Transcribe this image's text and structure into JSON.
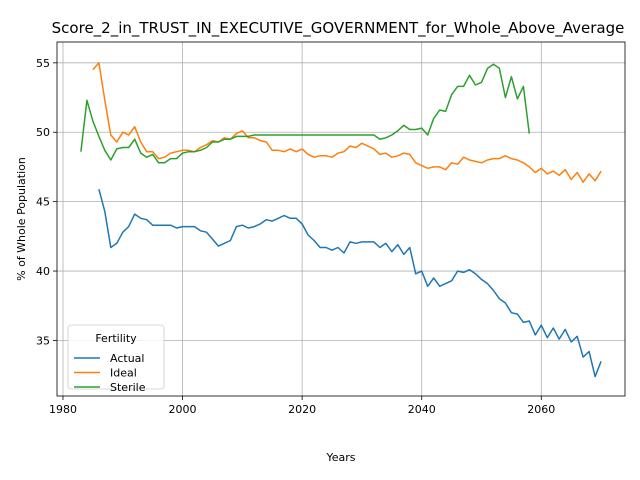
{
  "chart_data": {
    "type": "line",
    "title": "Score_2_in_TRUST_IN_EXECUTIVE_GOVERNMENT_for_Whole_Above_Average",
    "xlabel": "Years",
    "ylabel": "% of Whole Population",
    "xlim": [
      1979,
      2074
    ],
    "ylim": [
      31.0,
      56.5
    ],
    "xticks": [
      1980,
      2000,
      2020,
      2040,
      2060
    ],
    "yticks": [
      35,
      40,
      45,
      50,
      55
    ],
    "grid": true,
    "legend": {
      "title": "Fertility",
      "placement": "lower-left"
    },
    "series": [
      {
        "name": "Actual",
        "color": "#1f77b4",
        "x": [
          1986,
          1987,
          1988,
          1989,
          1990,
          1991,
          1992,
          1993,
          1994,
          1995,
          1996,
          1997,
          1998,
          1999,
          2000,
          2001,
          2002,
          2003,
          2004,
          2005,
          2006,
          2007,
          2008,
          2009,
          2010,
          2011,
          2012,
          2013,
          2014,
          2015,
          2016,
          2017,
          2018,
          2019,
          2020,
          2021,
          2022,
          2023,
          2024,
          2025,
          2026,
          2027,
          2028,
          2029,
          2030,
          2031,
          2032,
          2033,
          2034,
          2035,
          2036,
          2037,
          2038,
          2039,
          2040,
          2041,
          2042,
          2043,
          2044,
          2045,
          2046,
          2047,
          2048,
          2049,
          2050,
          2051,
          2052,
          2053,
          2054,
          2055,
          2056,
          2057,
          2058,
          2059,
          2060,
          2061,
          2062,
          2063,
          2064,
          2065,
          2066,
          2067,
          2068,
          2069,
          2070
        ],
        "values": [
          45.9,
          44.3,
          41.7,
          42.0,
          42.8,
          43.2,
          44.1,
          43.8,
          43.7,
          43.3,
          43.3,
          43.3,
          43.3,
          43.1,
          43.2,
          43.2,
          43.2,
          42.9,
          42.8,
          42.3,
          41.8,
          42.0,
          42.2,
          43.2,
          43.3,
          43.1,
          43.2,
          43.4,
          43.7,
          43.6,
          43.8,
          44.0,
          43.8,
          43.8,
          43.4,
          42.6,
          42.2,
          41.7,
          41.7,
          41.5,
          41.7,
          41.3,
          42.1,
          42.0,
          42.1,
          42.1,
          42.1,
          41.7,
          42.0,
          41.4,
          41.9,
          41.2,
          41.7,
          39.8,
          40.0,
          38.9,
          39.5,
          38.9,
          39.1,
          39.3,
          40.0,
          39.9,
          40.1,
          39.8,
          39.4,
          39.1,
          38.6,
          38.0,
          37.7,
          37.0,
          36.9,
          36.3,
          36.4,
          35.4,
          36.1,
          35.2,
          35.9,
          35.1,
          35.8,
          34.9,
          35.3,
          33.8,
          34.2,
          32.4,
          33.5
        ]
      },
      {
        "name": "Ideal",
        "color": "#ff7f0e",
        "x": [
          1985,
          1986,
          1987,
          1988,
          1989,
          1990,
          1991,
          1992,
          1993,
          1994,
          1995,
          1996,
          1997,
          1998,
          1999,
          2000,
          2001,
          2002,
          2003,
          2004,
          2005,
          2006,
          2007,
          2008,
          2009,
          2010,
          2011,
          2012,
          2013,
          2014,
          2015,
          2016,
          2017,
          2018,
          2019,
          2020,
          2021,
          2022,
          2023,
          2024,
          2025,
          2026,
          2027,
          2028,
          2029,
          2030,
          2031,
          2032,
          2033,
          2034,
          2035,
          2036,
          2037,
          2038,
          2039,
          2040,
          2041,
          2042,
          2043,
          2044,
          2045,
          2046,
          2047,
          2048,
          2049,
          2050,
          2051,
          2052,
          2053,
          2054,
          2055,
          2056,
          2057,
          2058,
          2059,
          2060,
          2061,
          2062,
          2063,
          2064,
          2065,
          2066,
          2067,
          2068,
          2069,
          2070
        ],
        "values": [
          54.5,
          55.0,
          52.3,
          49.8,
          49.3,
          50.0,
          49.8,
          50.4,
          49.3,
          48.6,
          48.6,
          48.1,
          48.2,
          48.5,
          48.6,
          48.7,
          48.7,
          48.6,
          48.9,
          49.1,
          49.4,
          49.3,
          49.6,
          49.5,
          49.9,
          50.1,
          49.6,
          49.6,
          49.4,
          49.3,
          48.7,
          48.7,
          48.6,
          48.8,
          48.6,
          48.8,
          48.4,
          48.2,
          48.3,
          48.3,
          48.2,
          48.5,
          48.6,
          49.0,
          48.9,
          49.2,
          49.0,
          48.8,
          48.4,
          48.5,
          48.2,
          48.3,
          48.5,
          48.4,
          47.8,
          47.6,
          47.4,
          47.5,
          47.5,
          47.3,
          47.8,
          47.7,
          48.2,
          48.0,
          47.9,
          47.8,
          48.0,
          48.1,
          48.1,
          48.3,
          48.1,
          48.0,
          47.8,
          47.5,
          47.1,
          47.4,
          47.0,
          47.2,
          46.9,
          47.3,
          46.6,
          47.1,
          46.4,
          47.0,
          46.5,
          47.2
        ]
      },
      {
        "name": "Sterile",
        "color": "#2ca02c",
        "x": [
          1983,
          1984,
          1985,
          1986,
          1987,
          1988,
          1989,
          1990,
          1991,
          1992,
          1993,
          1994,
          1995,
          1996,
          1997,
          1998,
          1999,
          2000,
          2001,
          2002,
          2003,
          2004,
          2005,
          2006,
          2007,
          2008,
          2009,
          2010,
          2011,
          2012,
          2013,
          2014,
          2015,
          2016,
          2017,
          2018,
          2019,
          2020,
          2021,
          2022,
          2023,
          2024,
          2025,
          2026,
          2027,
          2028,
          2029,
          2030,
          2031,
          2032,
          2033,
          2034,
          2035,
          2036,
          2037,
          2038,
          2039,
          2040,
          2041,
          2042,
          2043,
          2044,
          2045,
          2046,
          2047,
          2048,
          2049,
          2050,
          2051,
          2052,
          2053,
          2054,
          2055,
          2056,
          2057,
          2058
        ],
        "values": [
          48.6,
          52.3,
          50.8,
          49.7,
          48.7,
          48.0,
          48.8,
          48.9,
          48.9,
          49.5,
          48.5,
          48.2,
          48.4,
          47.8,
          47.8,
          48.1,
          48.1,
          48.5,
          48.6,
          48.6,
          48.7,
          48.9,
          49.3,
          49.3,
          49.5,
          49.5,
          49.7,
          49.7,
          49.7,
          49.8,
          49.8,
          49.8,
          49.8,
          49.8,
          49.8,
          49.8,
          49.8,
          49.8,
          49.8,
          49.8,
          49.8,
          49.8,
          49.8,
          49.8,
          49.8,
          49.8,
          49.8,
          49.8,
          49.8,
          49.8,
          49.5,
          49.6,
          49.8,
          50.1,
          50.5,
          50.2,
          50.2,
          50.3,
          49.8,
          51.0,
          51.6,
          51.5,
          52.7,
          53.3,
          53.3,
          54.1,
          53.4,
          53.6,
          54.6,
          54.9,
          54.6,
          52.5,
          54.0,
          52.4,
          53.3,
          49.9
        ]
      }
    ]
  }
}
